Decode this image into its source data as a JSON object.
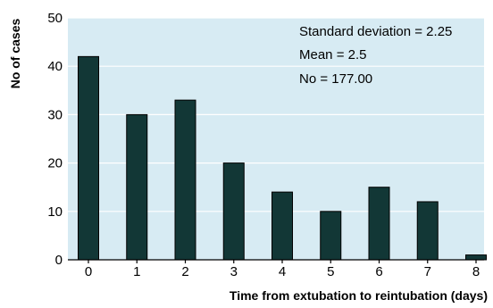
{
  "chart_data": {
    "type": "bar",
    "title": "",
    "xlabel": "Time from extubation to reintubation (days)",
    "ylabel": "No of cases",
    "categories": [
      "0",
      "1",
      "2",
      "3",
      "4",
      "5",
      "6",
      "7",
      "8"
    ],
    "values": [
      42,
      30,
      33,
      20,
      14,
      10,
      15,
      12,
      1
    ],
    "ylim": [
      0,
      50
    ],
    "yticks": [
      "0",
      "10",
      "20",
      "30",
      "40",
      "50"
    ],
    "grid": true,
    "annotations": [
      "Standard deviation = 2.25",
      "Mean = 2.5",
      "No = 177.00"
    ],
    "colors": {
      "bar": "#123736",
      "panel": "#d7ebf3",
      "grid": "#ffffff"
    }
  }
}
